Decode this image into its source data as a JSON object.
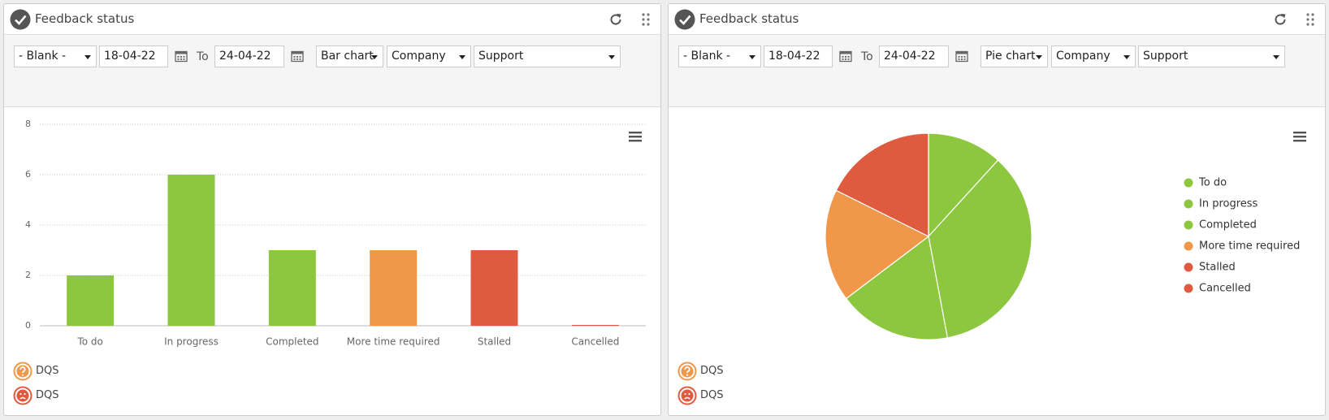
{
  "panels": [
    {
      "title": "Feedback status",
      "filter": "- Blank -",
      "date_from": "18-04-22",
      "to": "To",
      "date_to": "24-04-22",
      "chart_type": "Bar chart",
      "group": "Company",
      "department": "Support",
      "footer": [
        "DQS",
        "DQS"
      ]
    },
    {
      "title": "Feedback status",
      "filter": "- Blank -",
      "date_from": "18-04-22",
      "to": "To",
      "date_to": "24-04-22",
      "chart_type": "Pie chart",
      "group": "Company",
      "department": "Support",
      "footer": [
        "DQS",
        "DQS"
      ]
    }
  ],
  "chart_data": [
    {
      "type": "bar",
      "categories": [
        "To do",
        "In progress",
        "Completed",
        "More time required",
        "Stalled",
        "Cancelled"
      ],
      "values": [
        2,
        6,
        3,
        3,
        3,
        0
      ],
      "colors": [
        "#8dc63f",
        "#8dc63f",
        "#8dc63f",
        "#f0974a",
        "#e05a3f",
        "#e05a3f"
      ],
      "ylim": [
        0,
        8
      ],
      "yticks": [
        0,
        2,
        4,
        6,
        8
      ],
      "grid": true
    },
    {
      "type": "pie",
      "categories": [
        "To do",
        "In progress",
        "Completed",
        "More time required",
        "Stalled",
        "Cancelled"
      ],
      "values": [
        2,
        6,
        3,
        3,
        3,
        0
      ],
      "colors": [
        "#8dc63f",
        "#8dc63f",
        "#8dc63f",
        "#f0974a",
        "#e05a3f",
        "#e05a3f"
      ],
      "legend": "right"
    }
  ]
}
